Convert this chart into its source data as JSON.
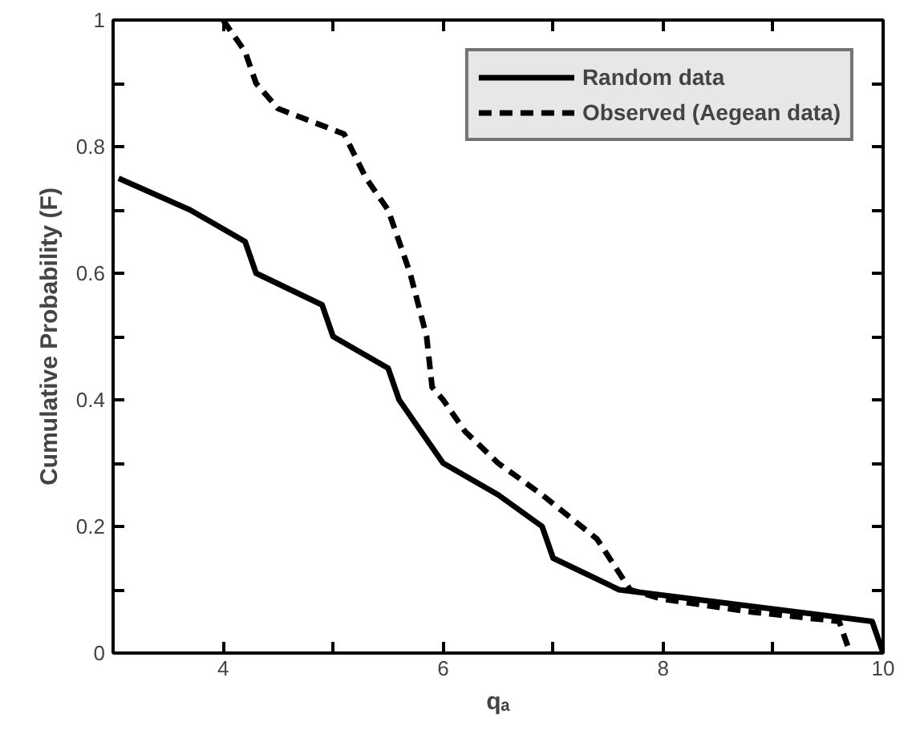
{
  "chart_data": {
    "type": "line",
    "xlabel": "qₐ",
    "ylabel": "Cumulative Probability (F)",
    "xlim": [
      3,
      10
    ],
    "ylim": [
      0,
      1
    ],
    "xticks": [
      {
        "value": 3,
        "label": null
      },
      4,
      {
        "value": 5,
        "label": null
      },
      6,
      {
        "value": 7,
        "label": null
      },
      8,
      {
        "value": 9,
        "label": null
      },
      10
    ],
    "yticks": [
      0,
      {
        "value": 0.1,
        "label": null
      },
      0.2,
      {
        "value": 0.3,
        "label": null
      },
      0.4,
      {
        "value": 0.5,
        "label": null
      },
      0.6,
      {
        "value": 0.7,
        "label": null
      },
      0.8,
      {
        "value": 0.9,
        "label": null
      },
      1
    ],
    "grid": false,
    "legend": "top right",
    "marker": "none",
    "series": [
      {
        "name": "Random data",
        "color": "#000000",
        "line_style": "solid",
        "x": [
          3.05,
          3.7,
          4.2,
          4.3,
          4.9,
          5.0,
          5.5,
          5.6,
          6.0,
          6.5,
          6.9,
          7.0,
          7.6,
          9.9,
          10.0
        ],
        "values": [
          0.75,
          0.7,
          0.65,
          0.6,
          0.55,
          0.5,
          0.45,
          0.4,
          0.3,
          0.25,
          0.2,
          0.15,
          0.1,
          0.05,
          0.0
        ]
      },
      {
        "name": "Observed (Aegean data)",
        "color": "#000000",
        "line_style": "dashed",
        "x": [
          4.0,
          4.2,
          4.3,
          4.5,
          5.1,
          5.3,
          5.5,
          5.7,
          5.85,
          5.9,
          6.0,
          6.2,
          6.5,
          6.9,
          7.4,
          7.7,
          8.0,
          8.8,
          9.6,
          9.7
        ],
        "values": [
          1.0,
          0.95,
          0.9,
          0.86,
          0.82,
          0.75,
          0.7,
          0.6,
          0.5,
          0.42,
          0.4,
          0.35,
          0.3,
          0.25,
          0.18,
          0.1,
          0.085,
          0.065,
          0.05,
          0.0
        ]
      }
    ]
  }
}
